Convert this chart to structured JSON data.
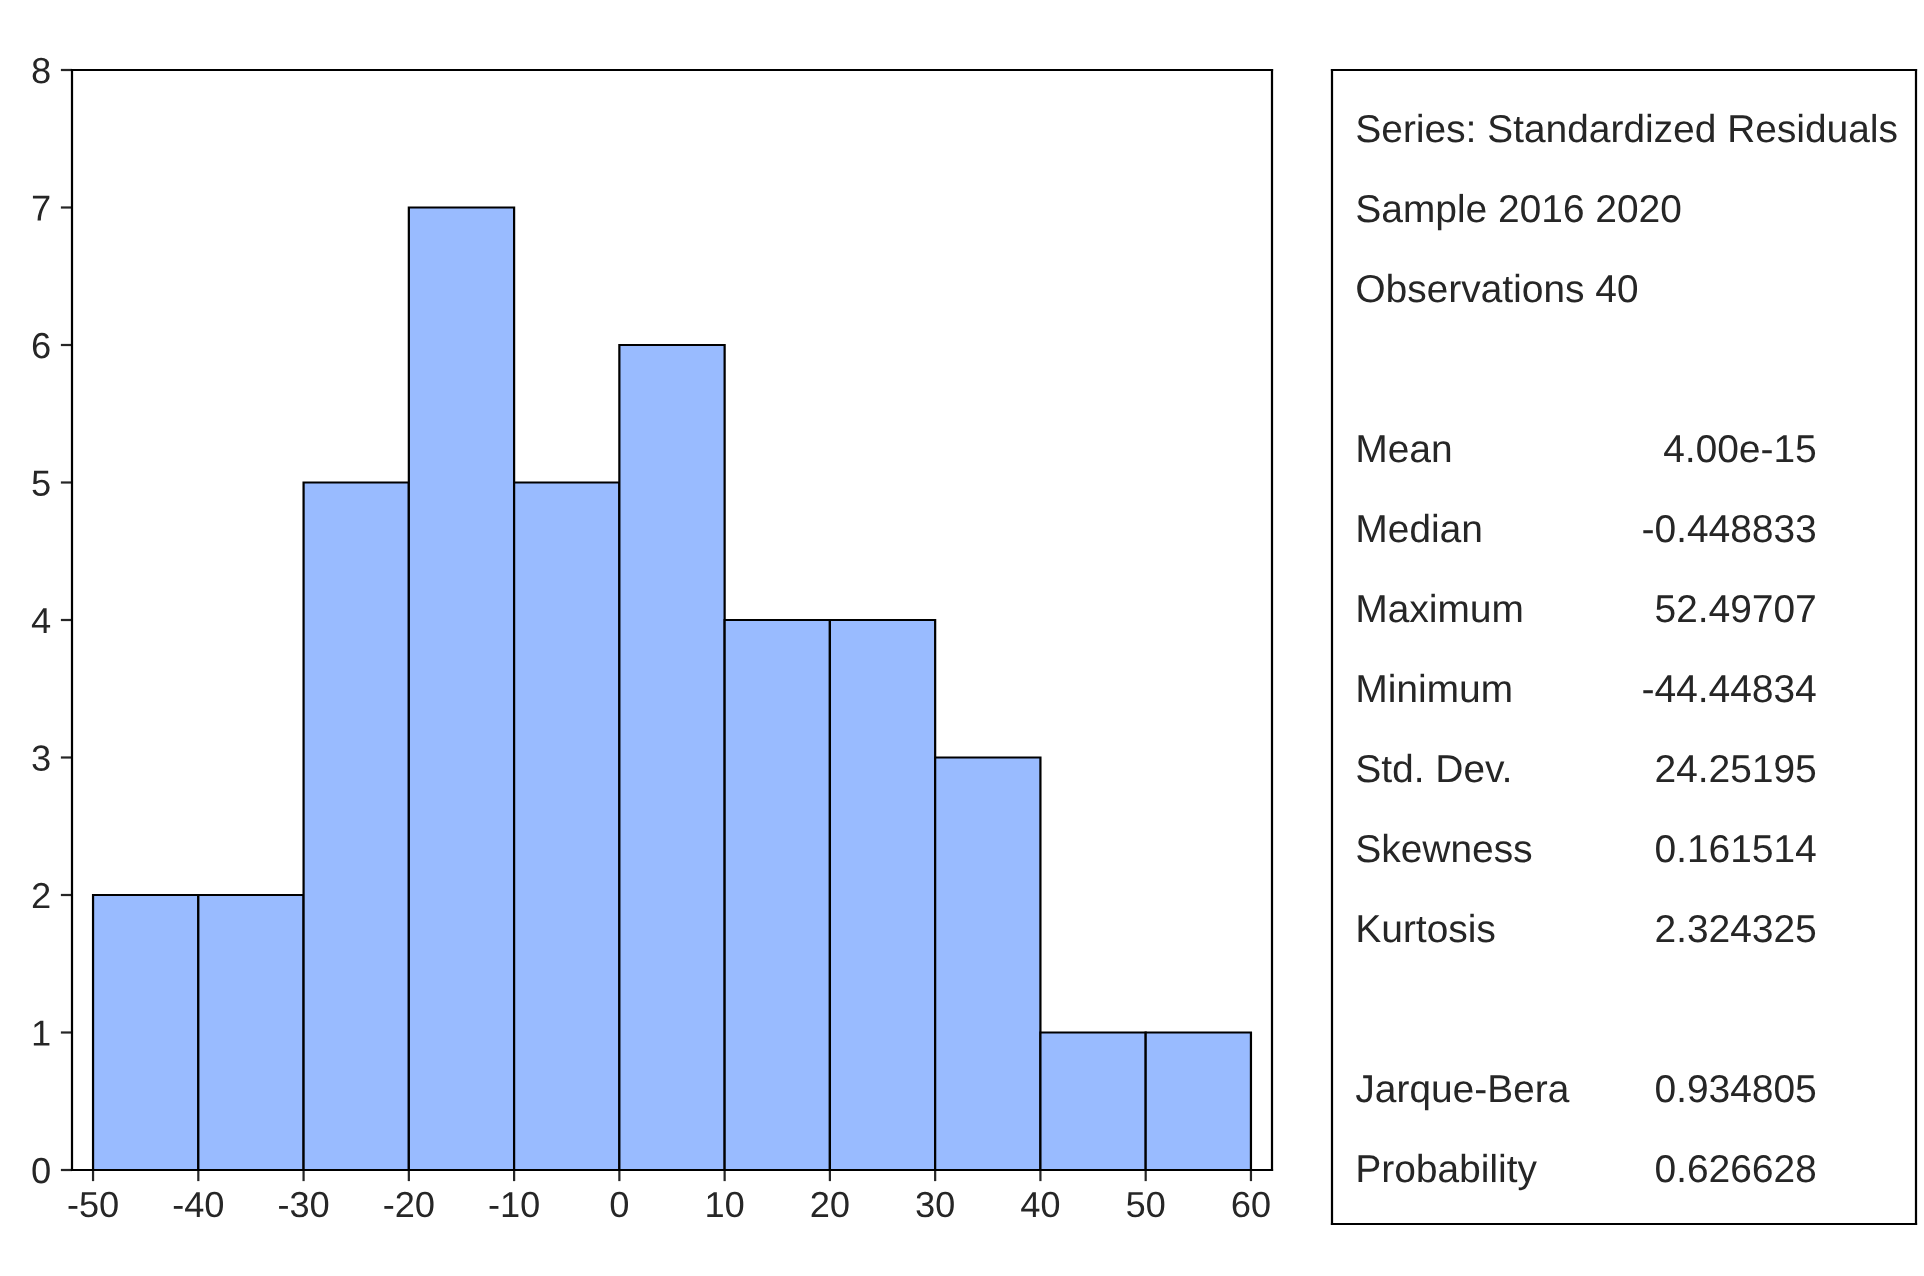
{
  "chart_data": [
    {
      "type": "histogram",
      "bins": [
        -50,
        -40,
        -30,
        -20,
        -10,
        0,
        10,
        20,
        30,
        40,
        50,
        60
      ],
      "values": [
        2,
        2,
        5,
        7,
        5,
        6,
        4,
        4,
        3,
        1,
        1
      ],
      "color": "#99bbff",
      "xlim": [
        -52,
        62
      ],
      "xticks": [
        -50,
        -40,
        -30,
        -20,
        -10,
        0,
        10,
        20,
        30,
        40,
        50,
        60
      ],
      "ylim": [
        0,
        8
      ],
      "yticks": [
        0,
        1,
        2,
        3,
        4,
        5,
        6,
        7,
        8
      ]
    },
    {
      "type": "other",
      "annotations": [
        "Series: Standardized Residuals",
        "Sample 2016 2020",
        "Observations 40",
        "Mean",
        "4.00e-15",
        "Median",
        "-0.448833",
        "Maximum",
        "52.49707",
        "Minimum",
        "-44.44834",
        "Std. Dev.",
        "24.25195",
        "Skewness",
        "0.161514",
        "Kurtosis",
        "2.324325",
        "Jarque-Bera",
        "0.934805",
        "Probability",
        "0.626628"
      ]
    }
  ]
}
